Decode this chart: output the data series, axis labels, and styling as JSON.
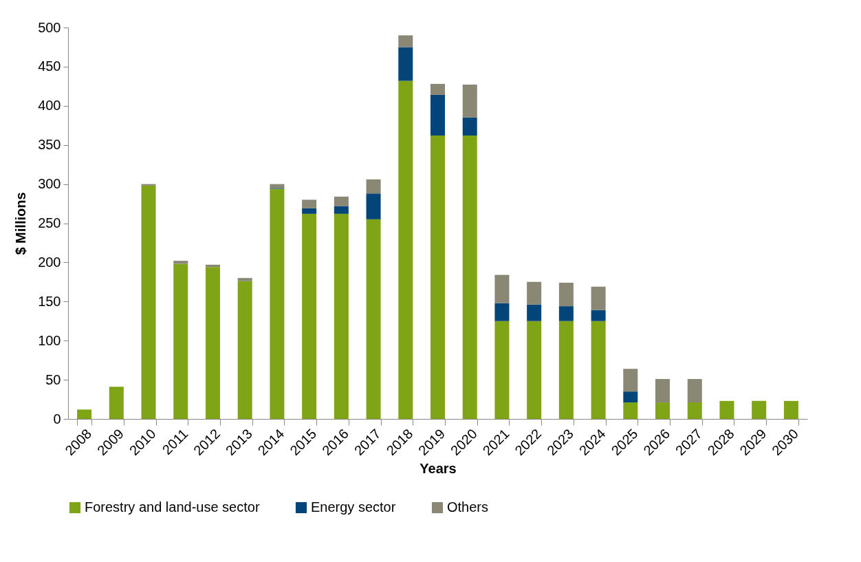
{
  "chart_data": {
    "type": "bar",
    "stacked": true,
    "xlabel": "Years",
    "ylabel": "$ Millions",
    "categories": [
      "2008",
      "2009",
      "2010",
      "2011",
      "2012",
      "2013",
      "2014",
      "2015",
      "2016",
      "2017",
      "2018",
      "2019",
      "2020",
      "2021",
      "2022",
      "2023",
      "2024",
      "2025",
      "2026",
      "2027",
      "2028",
      "2029",
      "2030"
    ],
    "series": [
      {
        "name": "Forestry and land-use sector",
        "color": "#7fa516",
        "values": [
          12,
          41,
          298,
          198,
          194,
          176,
          294,
          262,
          262,
          255,
          432,
          362,
          362,
          125,
          125,
          125,
          125,
          21,
          21,
          21,
          23,
          23,
          23
        ]
      },
      {
        "name": "Energy sector",
        "color": "#034579",
        "values": [
          0,
          0,
          0,
          0,
          0,
          0,
          1,
          7,
          10,
          33,
          43,
          52,
          23,
          23,
          21,
          19,
          14,
          14,
          0,
          0,
          0,
          0,
          0
        ]
      },
      {
        "name": "Others",
        "color": "#8a8874",
        "values": [
          0,
          0,
          2,
          4,
          3,
          4,
          5,
          11,
          12,
          18,
          15,
          14,
          42,
          36,
          29,
          30,
          30,
          29,
          30,
          30,
          0,
          0,
          0
        ]
      }
    ],
    "ylim": [
      0,
      500
    ],
    "yticks": [
      0,
      50,
      100,
      150,
      200,
      250,
      300,
      350,
      400,
      450,
      500
    ],
    "grid": false,
    "legend": "bottom"
  }
}
